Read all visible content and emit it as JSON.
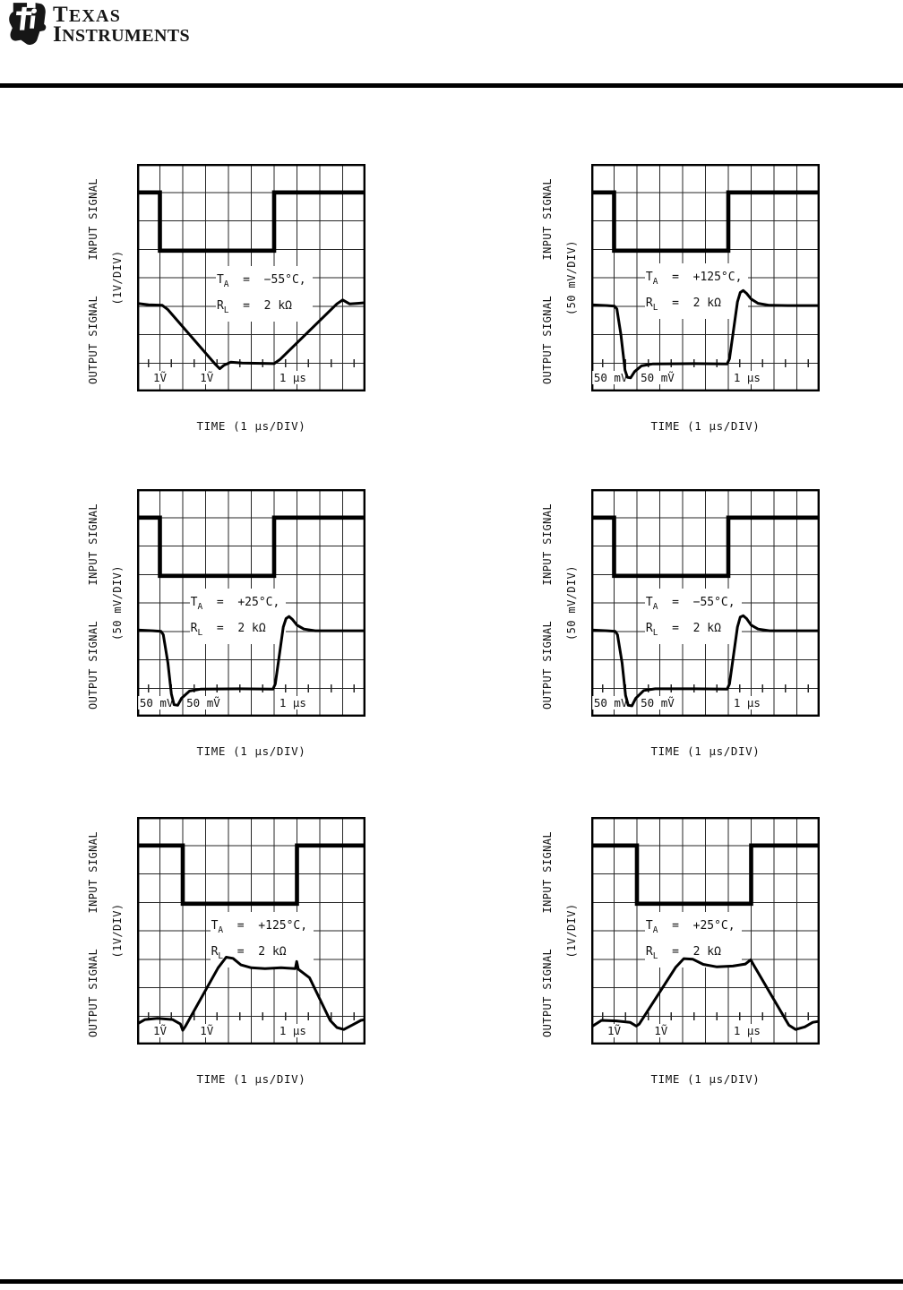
{
  "header": {
    "brand_top": "TEXAS",
    "brand_bottom": "INSTRUMENTS",
    "logo_icon": "ti-texas-map-bug"
  },
  "colors": {
    "ink": "#000000",
    "grid": "#262626",
    "paper": "#ffffff"
  },
  "chart_data": [
    {
      "id": "top-left",
      "type": "line",
      "title": "",
      "ylabel_bottom": "OUTPUT SIGNAL",
      "ylabel_top": "INPUT SIGNAL",
      "yscale": "(1V/DIV)",
      "xlabel": "TIME (1 μs/DIV)",
      "grid": {
        "cols": 10,
        "rows": 8,
        "x_per_div": "1 μs",
        "y_per_div": "1 V"
      },
      "condition": {
        "temp_base": "T",
        "temp_sub": "A",
        "temp_rest": "  =  −55°C,",
        "load_base": "R",
        "load_sub": "L",
        "load_rest": "  =  2 kΩ"
      },
      "annotation_pos_div": {
        "x": 3.45,
        "y": 3.6
      },
      "readout_labels": [
        {
          "text": "1Ṽ",
          "center_div": 1.0
        },
        {
          "text": "1Ṽ",
          "center_div": 3.05
        },
        {
          "text": "1 μs",
          "center_div": 6.82
        }
      ],
      "series": [
        {
          "name": "input-signal",
          "points_div": [
            [
              0,
              1
            ],
            [
              1,
              1
            ],
            [
              1,
              3.05
            ],
            [
              6,
              3.05
            ],
            [
              6,
              1
            ],
            [
              10,
              1
            ]
          ]
        },
        {
          "name": "output-signal",
          "points_div": [
            [
              0,
              4.9
            ],
            [
              0.5,
              4.95
            ],
            [
              1.1,
              4.97
            ],
            [
              1.35,
              5.12
            ],
            [
              3.4,
              7.02
            ],
            [
              3.62,
              7.2
            ],
            [
              3.8,
              7.08
            ],
            [
              4.1,
              6.97
            ],
            [
              4.6,
              7.0
            ],
            [
              6.0,
              7.02
            ],
            [
              6.25,
              6.88
            ],
            [
              8.75,
              4.92
            ],
            [
              9.0,
              4.78
            ],
            [
              9.3,
              4.92
            ],
            [
              9.65,
              4.9
            ],
            [
              10,
              4.88
            ]
          ]
        }
      ]
    },
    {
      "id": "top-right",
      "type": "line",
      "title": "",
      "ylabel_bottom": "OUTPUT SIGNAL",
      "ylabel_top": "INPUT SIGNAL",
      "yscale": "(50 mV/DIV)",
      "xlabel": "TIME (1 μs/DIV)",
      "grid": {
        "cols": 10,
        "rows": 8,
        "x_per_div": "1 μs",
        "y_per_div": "50 mV"
      },
      "condition": {
        "temp_base": "T",
        "temp_sub": "A",
        "temp_rest": "  =  +125°C,",
        "load_base": "R",
        "load_sub": "L",
        "load_rest": "  =  2 kΩ"
      },
      "annotation_pos_div": {
        "x": 2.35,
        "y": 3.5
      },
      "readout_labels": [
        {
          "text": "50 mV",
          "center_div": 0.85
        },
        {
          "text": "50 mṼ",
          "center_div": 2.9
        },
        {
          "text": "1 μs",
          "center_div": 6.82
        }
      ],
      "series": [
        {
          "name": "input-signal",
          "points_div": [
            [
              0,
              1
            ],
            [
              1,
              1
            ],
            [
              1,
              3.05
            ],
            [
              6,
              3.05
            ],
            [
              6,
              1
            ],
            [
              10,
              1
            ]
          ]
        },
        {
          "name": "output-signal",
          "points_div": [
            [
              0,
              4.95
            ],
            [
              0.7,
              4.98
            ],
            [
              1.02,
              5.0
            ],
            [
              1.12,
              5.1
            ],
            [
              1.3,
              6.0
            ],
            [
              1.48,
              7.25
            ],
            [
              1.58,
              7.5
            ],
            [
              1.72,
              7.52
            ],
            [
              1.9,
              7.3
            ],
            [
              2.2,
              7.1
            ],
            [
              2.7,
              7.03
            ],
            [
              4.5,
              7.02
            ],
            [
              5.95,
              7.03
            ],
            [
              6.05,
              6.85
            ],
            [
              6.2,
              6.0
            ],
            [
              6.4,
              4.85
            ],
            [
              6.52,
              4.52
            ],
            [
              6.65,
              4.45
            ],
            [
              6.8,
              4.55
            ],
            [
              7.0,
              4.75
            ],
            [
              7.3,
              4.9
            ],
            [
              7.8,
              4.97
            ],
            [
              8.6,
              4.98
            ],
            [
              10,
              4.98
            ]
          ]
        }
      ]
    },
    {
      "id": "middle-left",
      "type": "line",
      "title": "",
      "ylabel_bottom": "OUTPUT SIGNAL",
      "ylabel_top": "INPUT SIGNAL",
      "yscale": "(50 mV/DIV)",
      "xlabel": "TIME (1 μs/DIV)",
      "grid": {
        "cols": 10,
        "rows": 8,
        "x_per_div": "1 μs",
        "y_per_div": "50 mV"
      },
      "condition": {
        "temp_base": "T",
        "temp_sub": "A",
        "temp_rest": "  =  +25°C,",
        "load_base": "R",
        "load_sub": "L",
        "load_rest": "  =  2 kΩ"
      },
      "annotation_pos_div": {
        "x": 2.3,
        "y": 3.5
      },
      "readout_labels": [
        {
          "text": "50 mV",
          "center_div": 0.85
        },
        {
          "text": "50 mṼ",
          "center_div": 2.9
        },
        {
          "text": "1 μs",
          "center_div": 6.82
        }
      ],
      "series": [
        {
          "name": "input-signal",
          "points_div": [
            [
              0,
              1
            ],
            [
              1,
              1
            ],
            [
              1,
              3.05
            ],
            [
              6,
              3.05
            ],
            [
              6,
              1
            ],
            [
              10,
              1
            ]
          ]
        },
        {
          "name": "output-signal",
          "points_div": [
            [
              0,
              4.95
            ],
            [
              0.7,
              4.98
            ],
            [
              1.05,
              5.0
            ],
            [
              1.15,
              5.12
            ],
            [
              1.35,
              6.1
            ],
            [
              1.5,
              7.2
            ],
            [
              1.62,
              7.58
            ],
            [
              1.78,
              7.6
            ],
            [
              1.95,
              7.35
            ],
            [
              2.3,
              7.1
            ],
            [
              2.8,
              7.03
            ],
            [
              4.5,
              7.02
            ],
            [
              5.95,
              7.03
            ],
            [
              6.05,
              6.85
            ],
            [
              6.2,
              6.0
            ],
            [
              6.4,
              4.85
            ],
            [
              6.52,
              4.55
            ],
            [
              6.65,
              4.48
            ],
            [
              6.8,
              4.58
            ],
            [
              7.0,
              4.78
            ],
            [
              7.3,
              4.92
            ],
            [
              7.8,
              4.98
            ],
            [
              10,
              4.98
            ]
          ]
        }
      ]
    },
    {
      "id": "middle-right",
      "type": "line",
      "title": "",
      "ylabel_bottom": "OUTPUT SIGNAL",
      "ylabel_top": "INPUT SIGNAL",
      "yscale": "(50 mV/DIV)",
      "xlabel": "TIME (1 μs/DIV)",
      "grid": {
        "cols": 10,
        "rows": 8,
        "x_per_div": "1 μs",
        "y_per_div": "50 mV"
      },
      "condition": {
        "temp_base": "T",
        "temp_sub": "A",
        "temp_rest": "  =  −55°C,",
        "load_base": "R",
        "load_sub": "L",
        "load_rest": "  =  2 kΩ"
      },
      "annotation_pos_div": {
        "x": 2.35,
        "y": 3.5
      },
      "readout_labels": [
        {
          "text": "50 mV",
          "center_div": 0.85
        },
        {
          "text": "50 mṼ",
          "center_div": 2.9
        },
        {
          "text": "1 μs",
          "center_div": 6.82
        }
      ],
      "series": [
        {
          "name": "input-signal",
          "points_div": [
            [
              0,
              1
            ],
            [
              1,
              1
            ],
            [
              1,
              3.05
            ],
            [
              6,
              3.05
            ],
            [
              6,
              1
            ],
            [
              10,
              1
            ]
          ]
        },
        {
          "name": "output-signal",
          "points_div": [
            [
              0,
              4.95
            ],
            [
              0.7,
              4.98
            ],
            [
              1.05,
              5.0
            ],
            [
              1.15,
              5.12
            ],
            [
              1.35,
              6.1
            ],
            [
              1.5,
              7.25
            ],
            [
              1.62,
              7.6
            ],
            [
              1.78,
              7.62
            ],
            [
              1.95,
              7.35
            ],
            [
              2.3,
              7.08
            ],
            [
              2.8,
              7.02
            ],
            [
              4.5,
              7.02
            ],
            [
              5.95,
              7.03
            ],
            [
              6.05,
              6.85
            ],
            [
              6.2,
              6.0
            ],
            [
              6.4,
              4.85
            ],
            [
              6.52,
              4.5
            ],
            [
              6.65,
              4.45
            ],
            [
              6.8,
              4.55
            ],
            [
              7.0,
              4.78
            ],
            [
              7.3,
              4.92
            ],
            [
              7.8,
              4.98
            ],
            [
              10,
              4.98
            ]
          ]
        }
      ]
    },
    {
      "id": "bottom-left",
      "type": "line",
      "title": "",
      "ylabel_bottom": "OUTPUT SIGNAL",
      "ylabel_top": "INPUT SIGNAL",
      "yscale": "(1V/DIV)",
      "xlabel": "TIME (1 μs/DIV)",
      "grid": {
        "cols": 10,
        "rows": 8,
        "x_per_div": "1 μs",
        "y_per_div": "1 V"
      },
      "condition": {
        "temp_base": "T",
        "temp_sub": "A",
        "temp_rest": "  =  +125°C,",
        "load_base": "R",
        "load_sub": "L",
        "load_rest": "  =  2 kΩ"
      },
      "annotation_pos_div": {
        "x": 3.2,
        "y": 3.35
      },
      "readout_labels": [
        {
          "text": "1Ṽ",
          "center_div": 1.0
        },
        {
          "text": "1Ṽ",
          "center_div": 3.05
        },
        {
          "text": "1 μs",
          "center_div": 6.82
        }
      ],
      "series": [
        {
          "name": "input-signal",
          "points_div": [
            [
              0,
              1
            ],
            [
              2,
              1
            ],
            [
              2,
              3.05
            ],
            [
              7,
              3.05
            ],
            [
              7,
              1
            ],
            [
              10,
              1
            ]
          ]
        },
        {
          "name": "output-signal",
          "points_div": [
            [
              0,
              7.28
            ],
            [
              0.35,
              7.12
            ],
            [
              0.9,
              7.08
            ],
            [
              1.55,
              7.12
            ],
            [
              1.9,
              7.28
            ],
            [
              2.0,
              7.5
            ],
            [
              2.12,
              7.35
            ],
            [
              3.55,
              5.3
            ],
            [
              3.9,
              4.93
            ],
            [
              4.2,
              4.97
            ],
            [
              4.55,
              5.2
            ],
            [
              5.0,
              5.3
            ],
            [
              5.6,
              5.33
            ],
            [
              6.3,
              5.3
            ],
            [
              6.93,
              5.33
            ],
            [
              6.99,
              5.08
            ],
            [
              7.06,
              5.35
            ],
            [
              7.55,
              5.65
            ],
            [
              8.45,
              7.15
            ],
            [
              8.75,
              7.4
            ],
            [
              9.05,
              7.47
            ],
            [
              9.45,
              7.3
            ],
            [
              9.8,
              7.15
            ],
            [
              10,
              7.12
            ]
          ]
        }
      ]
    },
    {
      "id": "bottom-right",
      "type": "line",
      "title": "",
      "ylabel_bottom": "OUTPUT SIGNAL",
      "ylabel_top": "INPUT SIGNAL",
      "yscale": "(1V/DIV)",
      "xlabel": "TIME (1 μs/DIV)",
      "grid": {
        "cols": 10,
        "rows": 8,
        "x_per_div": "1 μs",
        "y_per_div": "1 V"
      },
      "condition": {
        "temp_base": "T",
        "temp_sub": "A",
        "temp_rest": "  =  +25°C,",
        "load_base": "R",
        "load_sub": "L",
        "load_rest": "  =  2 kΩ"
      },
      "annotation_pos_div": {
        "x": 2.35,
        "y": 3.35
      },
      "readout_labels": [
        {
          "text": "1Ṽ",
          "center_div": 1.0
        },
        {
          "text": "1Ṽ",
          "center_div": 3.05
        },
        {
          "text": "1 μs",
          "center_div": 6.82
        }
      ],
      "series": [
        {
          "name": "input-signal",
          "points_div": [
            [
              0,
              1
            ],
            [
              2,
              1
            ],
            [
              2,
              3.05
            ],
            [
              7,
              3.05
            ],
            [
              7,
              1
            ],
            [
              10,
              1
            ]
          ]
        },
        {
          "name": "output-signal",
          "points_div": [
            [
              0,
              7.38
            ],
            [
              0.45,
              7.15
            ],
            [
              1.1,
              7.17
            ],
            [
              1.7,
              7.22
            ],
            [
              1.97,
              7.35
            ],
            [
              2.1,
              7.28
            ],
            [
              3.7,
              5.28
            ],
            [
              4.05,
              4.98
            ],
            [
              4.45,
              5.0
            ],
            [
              4.9,
              5.18
            ],
            [
              5.5,
              5.27
            ],
            [
              6.2,
              5.24
            ],
            [
              6.75,
              5.17
            ],
            [
              6.98,
              5.02
            ],
            [
              7.12,
              5.22
            ],
            [
              8.65,
              7.32
            ],
            [
              8.95,
              7.47
            ],
            [
              9.35,
              7.38
            ],
            [
              9.7,
              7.22
            ],
            [
              10,
              7.18
            ]
          ]
        }
      ]
    }
  ]
}
